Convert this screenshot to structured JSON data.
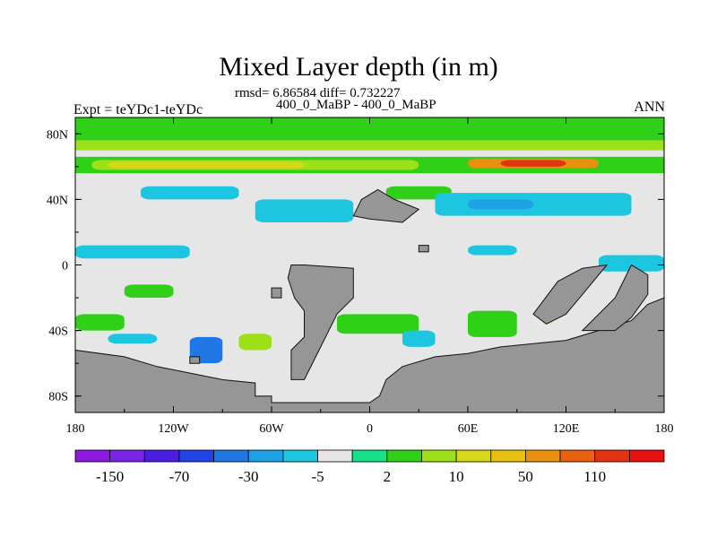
{
  "header": {
    "title": "Mixed Layer depth (in m)",
    "stats": "rmsd= 6.86584 diff= 0.732227",
    "period": "400_0_MaBP - 400_0_MaBP",
    "left_label": "Expt = teYDc1-teYDc",
    "right_label": "ANN"
  },
  "colors": {
    "land": "#969696",
    "ocean_neutral": "#e6e6e6",
    "accent_red": "#e82a12"
  },
  "chart_data": {
    "type": "heatmap",
    "title": "Mixed Layer depth (in m)",
    "projection": "cylindrical equidistant",
    "xlim": [
      -180,
      180
    ],
    "ylim": [
      -90,
      90
    ],
    "x_ticks": [
      {
        "value": -180,
        "label": "180"
      },
      {
        "value": -120,
        "label": "120W"
      },
      {
        "value": -60,
        "label": "60W"
      },
      {
        "value": 0,
        "label": "0"
      },
      {
        "value": 60,
        "label": "60E"
      },
      {
        "value": 120,
        "label": "120E"
      },
      {
        "value": 180,
        "label": "180"
      }
    ],
    "y_ticks": [
      {
        "value": 80,
        "label": "80N"
      },
      {
        "value": 40,
        "label": "40N"
      },
      {
        "value": 0,
        "label": "0"
      },
      {
        "value": -40,
        "label": "40S"
      },
      {
        "value": -80,
        "label": "80S"
      }
    ],
    "colorbar": {
      "colors": [
        "#8b19e0",
        "#7a25e6",
        "#4a1ee0",
        "#2044e6",
        "#2077e6",
        "#1ea0e6",
        "#1cc6e0",
        "#e6e6e6",
        "#18e088",
        "#30d018",
        "#9ee018",
        "#d8d818",
        "#e8c010",
        "#e89010",
        "#e86010",
        "#e23412",
        "#e81010"
      ],
      "labels": [
        {
          "index": 1,
          "label": "-150"
        },
        {
          "index": 3,
          "label": "-70"
        },
        {
          "index": 5,
          "label": "-30"
        },
        {
          "index": 7,
          "label": "-5"
        },
        {
          "index": 9,
          "label": "2"
        },
        {
          "index": 11,
          "label": "10"
        },
        {
          "index": 13,
          "label": "50"
        },
        {
          "index": 15,
          "label": "110"
        }
      ]
    },
    "anomaly_regions": [
      {
        "name": "arctic-band",
        "lon": [
          -180,
          180
        ],
        "lat": [
          76,
          90
        ],
        "level": 9
      },
      {
        "name": "arctic-band-inner",
        "lon": [
          -180,
          180
        ],
        "lat": [
          70,
          76
        ],
        "level": 10
      },
      {
        "name": "north-60-band",
        "lon": [
          -180,
          180
        ],
        "lat": [
          56,
          66
        ],
        "level": 9
      },
      {
        "name": "north-60-core",
        "lon": [
          -170,
          30
        ],
        "lat": [
          58,
          64
        ],
        "level": 10
      },
      {
        "name": "north-atlantic-warm",
        "lon": [
          -160,
          -40
        ],
        "lat": [
          59,
          63
        ],
        "level": 11
      },
      {
        "name": "north-eurasia-high",
        "lon": [
          60,
          140
        ],
        "lat": [
          59,
          65
        ],
        "level": 13
      },
      {
        "name": "north-eurasia-max",
        "lon": [
          80,
          120
        ],
        "lat": [
          60,
          64
        ],
        "level": 15
      },
      {
        "name": "np-blue-1",
        "lon": [
          -140,
          -80
        ],
        "lat": [
          40,
          48
        ],
        "level": 6
      },
      {
        "name": "np-blue-2",
        "lon": [
          -70,
          -10
        ],
        "lat": [
          26,
          40
        ],
        "level": 6
      },
      {
        "name": "na-green",
        "lon": [
          10,
          50
        ],
        "lat": [
          40,
          48
        ],
        "level": 9
      },
      {
        "name": "eurasia-blue",
        "lon": [
          40,
          160
        ],
        "lat": [
          30,
          44
        ],
        "level": 6
      },
      {
        "name": "eurasia-blue-core",
        "lon": [
          60,
          100
        ],
        "lat": [
          34,
          40
        ],
        "level": 5
      },
      {
        "name": "trop-blue-1",
        "lon": [
          -180,
          -110
        ],
        "lat": [
          4,
          12
        ],
        "level": 6
      },
      {
        "name": "trop-blue-2",
        "lon": [
          140,
          180
        ],
        "lat": [
          -4,
          6
        ],
        "level": 6
      },
      {
        "name": "trop-blue-3",
        "lon": [
          60,
          90
        ],
        "lat": [
          6,
          12
        ],
        "level": 6
      },
      {
        "name": "sp-green-1",
        "lon": [
          -150,
          -120
        ],
        "lat": [
          -20,
          -12
        ],
        "level": 9
      },
      {
        "name": "so-green-1",
        "lon": [
          -180,
          -150
        ],
        "lat": [
          -40,
          -30
        ],
        "level": 9
      },
      {
        "name": "so-blue-1",
        "lon": [
          -160,
          -130
        ],
        "lat": [
          -48,
          -42
        ],
        "level": 6
      },
      {
        "name": "so-blue-2",
        "lon": [
          -110,
          -90
        ],
        "lat": [
          -60,
          -44
        ],
        "level": 4
      },
      {
        "name": "so-green-2",
        "lon": [
          -80,
          -60
        ],
        "lat": [
          -52,
          -42
        ],
        "level": 10
      },
      {
        "name": "so-green-3",
        "lon": [
          -20,
          30
        ],
        "lat": [
          -42,
          -30
        ],
        "level": 9
      },
      {
        "name": "so-blue-3",
        "lon": [
          20,
          40
        ],
        "lat": [
          -50,
          -40
        ],
        "level": 6
      },
      {
        "name": "so-green-4",
        "lon": [
          60,
          90
        ],
        "lat": [
          -44,
          -28
        ],
        "level": 9
      },
      {
        "name": "so-green-5",
        "lon": [
          105,
          112
        ],
        "lat": [
          -36,
          -30
        ],
        "level": 11
      }
    ],
    "land_regions": [
      {
        "name": "antarctica",
        "points": [
          [
            -180,
            -90
          ],
          [
            -180,
            -52
          ],
          [
            -150,
            -56
          ],
          [
            -130,
            -62
          ],
          [
            -90,
            -70
          ],
          [
            -70,
            -72
          ],
          [
            -70,
            -80
          ],
          [
            -60,
            -80
          ],
          [
            -60,
            -84
          ],
          [
            0,
            -84
          ],
          [
            6,
            -80
          ],
          [
            10,
            -70
          ],
          [
            20,
            -62
          ],
          [
            40,
            -56
          ],
          [
            60,
            -54
          ],
          [
            80,
            -50
          ],
          [
            100,
            -48
          ],
          [
            120,
            -46
          ],
          [
            140,
            -40
          ],
          [
            160,
            -34
          ],
          [
            170,
            -24
          ],
          [
            180,
            -20
          ],
          [
            180,
            -90
          ]
        ]
      },
      {
        "name": "south-america",
        "points": [
          [
            -48,
            0
          ],
          [
            -40,
            0
          ],
          [
            -10,
            -2
          ],
          [
            -10,
            -20
          ],
          [
            -20,
            -30
          ],
          [
            -30,
            -50
          ],
          [
            -40,
            -70
          ],
          [
            -48,
            -70
          ],
          [
            -48,
            -52
          ],
          [
            -40,
            -44
          ],
          [
            -40,
            -28
          ],
          [
            -46,
            -20
          ],
          [
            -50,
            -8
          ]
        ]
      },
      {
        "name": "africa-asia-spur",
        "points": [
          [
            -5,
            40
          ],
          [
            5,
            46
          ],
          [
            15,
            40
          ],
          [
            30,
            34
          ],
          [
            20,
            26
          ],
          [
            0,
            28
          ],
          [
            -10,
            30
          ]
        ]
      },
      {
        "name": "pacific-land",
        "points": [
          [
            100,
            -30
          ],
          [
            115,
            -10
          ],
          [
            130,
            -2
          ],
          [
            145,
            0
          ],
          [
            130,
            -18
          ],
          [
            120,
            -30
          ],
          [
            108,
            -36
          ]
        ]
      },
      {
        "name": "east-continent",
        "points": [
          [
            130,
            -40
          ],
          [
            150,
            -20
          ],
          [
            160,
            0
          ],
          [
            170,
            -6
          ],
          [
            170,
            -18
          ],
          [
            160,
            -32
          ],
          [
            150,
            -40
          ]
        ]
      },
      {
        "name": "small-island-1",
        "points": [
          [
            -60,
            -20
          ],
          [
            -54,
            -20
          ],
          [
            -54,
            -14
          ],
          [
            -60,
            -14
          ]
        ]
      },
      {
        "name": "small-island-2",
        "points": [
          [
            30,
            12
          ],
          [
            36,
            12
          ],
          [
            36,
            8
          ],
          [
            30,
            8
          ]
        ]
      },
      {
        "name": "small-island-3",
        "points": [
          [
            -110,
            -56
          ],
          [
            -104,
            -56
          ],
          [
            -104,
            -60
          ],
          [
            -110,
            -60
          ]
        ]
      }
    ]
  }
}
